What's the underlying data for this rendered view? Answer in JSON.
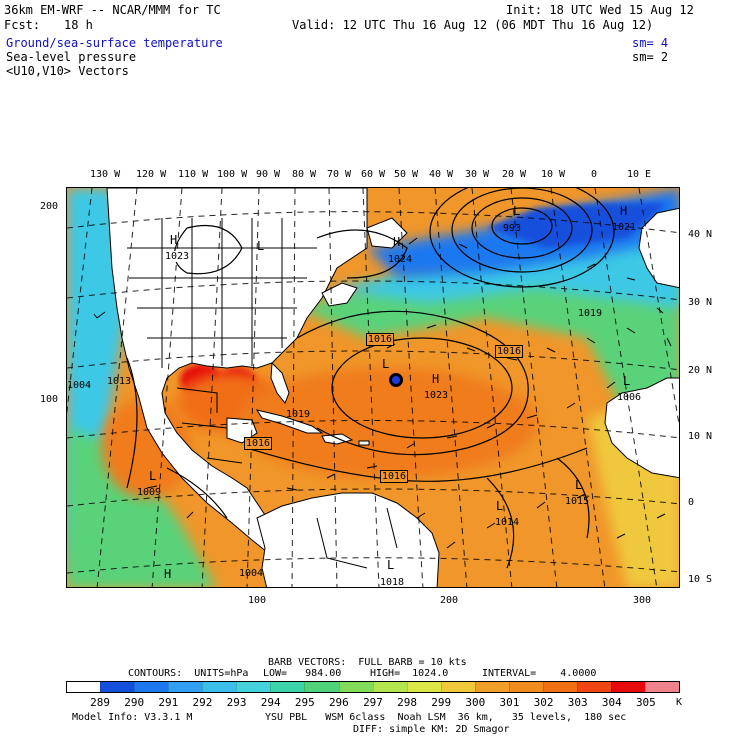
{
  "header": {
    "model_title": "36km EM-WRF -- NCAR/MMM for TC",
    "init_label": "Init: 18 UTC Wed 15 Aug 12",
    "forecast_label": "Fcst:",
    "forecast_hours": "18 h",
    "valid_label": "Valid: 12 UTC Thu 16 Aug 12 (06 MDT Thu 16 Aug 12)"
  },
  "fields": [
    {
      "name": "Ground/sea-surface temperature",
      "sm": "sm= 4",
      "color": "#1010c0"
    },
    {
      "name": "Sea-level pressure",
      "sm": "sm= 2",
      "color": "#000000"
    },
    {
      "name": "<U10,V10> Vectors",
      "sm": "",
      "color": "#000000"
    }
  ],
  "map": {
    "top_lon_labels": [
      "130 W",
      "120 W",
      "110 W",
      "100 W",
      "90 W",
      "80 W",
      "70 W",
      "60 W",
      "50 W",
      "40 W",
      "30 W",
      "20 W",
      "10 W",
      "0",
      "10 E"
    ],
    "right_lat_labels": [
      "40 N",
      "30 N",
      "20 N",
      "10 N",
      "0",
      "10 S"
    ],
    "left_grid_labels": [
      "200",
      "100"
    ],
    "bottom_grid_labels": [
      "100",
      "200",
      "300"
    ],
    "pressure_labels": [
      "1023",
      "1024",
      "1016",
      "1016",
      "1016",
      "1016",
      "1023",
      "1019",
      "1019",
      "1015",
      "1014",
      "1009",
      "1018",
      "1006",
      "1021",
      "993",
      "1013",
      "1004",
      "1004"
    ],
    "systems": [
      {
        "letter": "H"
      },
      {
        "letter": "H"
      },
      {
        "letter": "H"
      },
      {
        "letter": "H"
      },
      {
        "letter": "H"
      },
      {
        "letter": "L"
      },
      {
        "letter": "L"
      },
      {
        "letter": "L"
      },
      {
        "letter": "L"
      },
      {
        "letter": "L"
      },
      {
        "letter": "L"
      },
      {
        "letter": "L"
      },
      {
        "letter": "L"
      }
    ],
    "colors": {
      "land": "#ffffff",
      "cold": "#1e64e6",
      "cool": "#3cc8e6",
      "mild": "#5ad27a",
      "warm": "#f0a028",
      "hot": "#f07814",
      "hottest": "#e60a0a"
    }
  },
  "barb_info": "BARB VECTORS:  FULL BARB = 10 kts",
  "contours": {
    "prefix": "CONTOURS:  UNITS=hPa",
    "low": "LOW=   984.00",
    "high": "HIGH=  1024.0",
    "interval": "INTERVAL=    4.0000"
  },
  "colorbar": {
    "unit": "K",
    "labels": [
      "289",
      "290",
      "291",
      "292",
      "293",
      "294",
      "295",
      "296",
      "297",
      "298",
      "299",
      "300",
      "301",
      "302",
      "303",
      "304",
      "305"
    ],
    "colors": [
      "#ffffff",
      "#1450dc",
      "#1e78f0",
      "#32a0f0",
      "#3cbeeb",
      "#46d2dc",
      "#3cd2aa",
      "#50d278",
      "#82dc5a",
      "#b4e650",
      "#dce646",
      "#f0c83c",
      "#f0a028",
      "#f08c1e",
      "#f06e14",
      "#f04614",
      "#e60a0a",
      "#f0828c"
    ]
  },
  "footer": {
    "model_info": "Model Info: V3.3.1 M",
    "physics_1": "YSU PBL   WSM 6class  Noah LSM  36 km,   35 levels,  180 sec",
    "physics_2": "DIFF: simple KM: 2D Smagor"
  }
}
